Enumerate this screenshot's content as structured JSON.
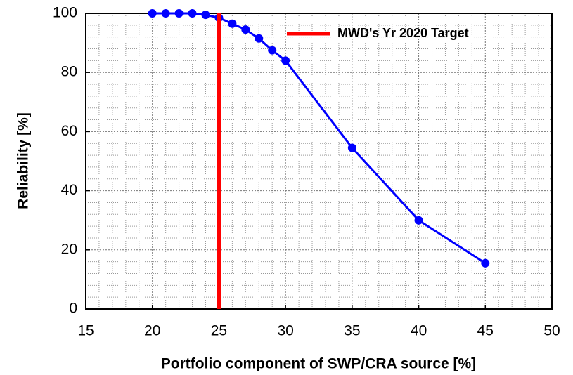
{
  "chart_data": {
    "type": "line",
    "xlabel": "Portfolio component of SWP/CRA source [%]",
    "ylabel": "Reliability [%]",
    "xlim": [
      15,
      50
    ],
    "ylim": [
      0,
      100
    ],
    "xticks": [
      15,
      20,
      25,
      30,
      35,
      40,
      45,
      50
    ],
    "yticks": [
      0,
      20,
      40,
      60,
      80,
      100
    ],
    "grid": true,
    "legend": "upper right",
    "series": [
      {
        "x": [
          20,
          21,
          22,
          23,
          24,
          25,
          26,
          27,
          28,
          29,
          30,
          35,
          40,
          45
        ],
        "values": [
          100,
          100,
          100,
          100,
          99.5,
          98.5,
          96.5,
          94.5,
          91.5,
          87.5,
          84,
          54.5,
          30,
          15.5
        ],
        "color": "#0000ff",
        "marker": "circle"
      },
      {
        "name": "MWD's Yr 2020 Target",
        "x": [
          25,
          25
        ],
        "values": [
          0,
          100
        ],
        "color": "#ff0000",
        "marker": "none"
      }
    ]
  }
}
